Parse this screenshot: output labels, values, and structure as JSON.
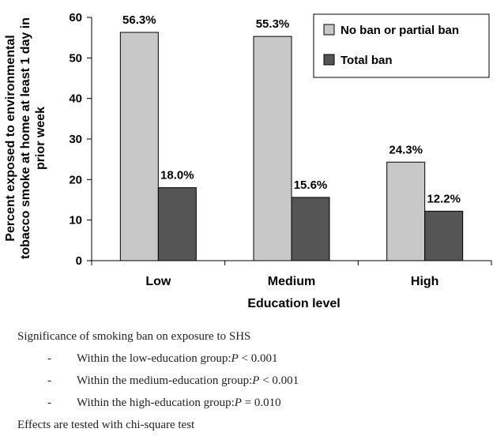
{
  "chart_data": {
    "type": "bar",
    "categories": [
      "Low",
      "Medium",
      "High"
    ],
    "series": [
      {
        "name": "No ban or partial ban",
        "values": [
          56.3,
          55.3,
          24.3
        ],
        "labels": [
          "56.3%",
          "55.3%",
          "24.3%"
        ],
        "color": "#c8c8c8"
      },
      {
        "name": "Total ban",
        "values": [
          18.0,
          15.6,
          12.2
        ],
        "labels": [
          "18.0%",
          "15.6%",
          "12.2%"
        ],
        "color": "#555555"
      }
    ],
    "title": "",
    "xlabel": "Education level",
    "ylabel_lines": [
      "Percent exposed to environmental",
      "tobacco smoke at home at least 1 day in",
      "prior week"
    ],
    "ylim": [
      0,
      60
    ],
    "yticks": [
      0,
      10,
      20,
      30,
      40,
      50,
      60
    ],
    "grid": false,
    "legend_position": "top-right"
  },
  "notes": {
    "heading": "Significance of smoking ban on exposure to SHS",
    "items": [
      {
        "dash": "-",
        "text": "Within the low-education group:",
        "p": "P",
        "rest": " < 0.001"
      },
      {
        "dash": "-",
        "text": "Within the medium-education group:",
        "p": "P",
        "rest": " < 0.001"
      },
      {
        "dash": "-",
        "text": "Within the high-education group:",
        "p": "P",
        "rest": " = 0.010"
      }
    ],
    "footer": "Effects are tested with chi-square test"
  }
}
